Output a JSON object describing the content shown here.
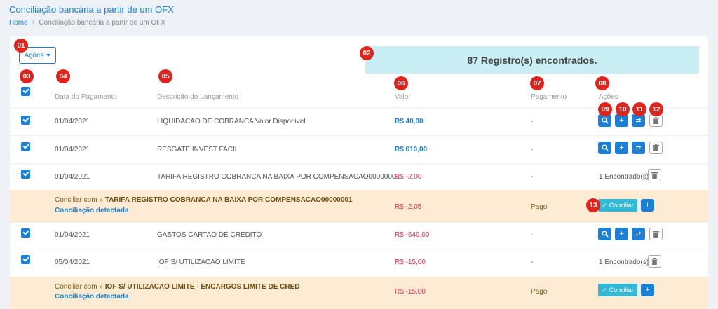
{
  "page": {
    "title": "Conciliação bancária a partir de um OFX"
  },
  "breadcrumb": {
    "home": "Home",
    "current": "Conciliação bancária a partir de um OFX"
  },
  "toolbar": {
    "acoes_label": "Ações"
  },
  "records_found": "87 Registro(s) encontrados.",
  "columns": {
    "data": "Data do Pagamento",
    "descricao": "Descrição do Lançamento",
    "valor": "Valor",
    "pagamento": "Pagamento",
    "acoes": "Ações"
  },
  "badges": [
    "01",
    "02",
    "03",
    "04",
    "05",
    "06",
    "07",
    "08",
    "09",
    "10",
    "11",
    "12",
    "13"
  ],
  "rows": [
    {
      "date": "01/04/2021",
      "desc": "LIQUIDACAO DE COBRANCA Valor Disponivel",
      "value": "R$ 40,00",
      "payment": "-"
    },
    {
      "date": "01/04/2021",
      "desc": "RESGATE INVEST FACIL",
      "value": "R$ 610,00",
      "payment": "-"
    },
    {
      "date": "01/04/2021",
      "desc": "TARIFA REGISTRO COBRANCA NA BAIXA POR COMPENSACAO00000001",
      "value": "R$ -2,00",
      "payment": "-",
      "found": "1 Encontrado(s)"
    },
    {
      "prefix": "Conciliar com »",
      "match": "TARIFA REGISTRO COBRANCA NA BAIXA POR COMPENSACAO00000001",
      "detected": "Conciliação detectada",
      "value": "R$ -2,05",
      "payment": "Pago",
      "button": "Conciliar"
    },
    {
      "date": "01/04/2021",
      "desc": "GASTOS CARTAO DE CREDITO",
      "value": "R$ -649,00",
      "payment": "-"
    },
    {
      "date": "05/04/2021",
      "desc": "IOF S/ UTILIZACAO LIMITE",
      "value": "R$ -15,00",
      "payment": "-",
      "found": "1 Encontrado(s)"
    },
    {
      "prefix": "Conciliar com »",
      "match": "IOF S/ UTILIZACAO LIMITE - ENCARGOS LIMITE DE CRED",
      "detected": "Conciliação detectada",
      "value": "R$ -15,00",
      "payment": "Pago",
      "button": "Conciliar"
    }
  ],
  "colors": {
    "primary": "#1b7fd6",
    "negative": "#e0344f",
    "reconcile_bg": "#fdebd3",
    "badge": "#e0241b",
    "info": "#c9eef4"
  }
}
